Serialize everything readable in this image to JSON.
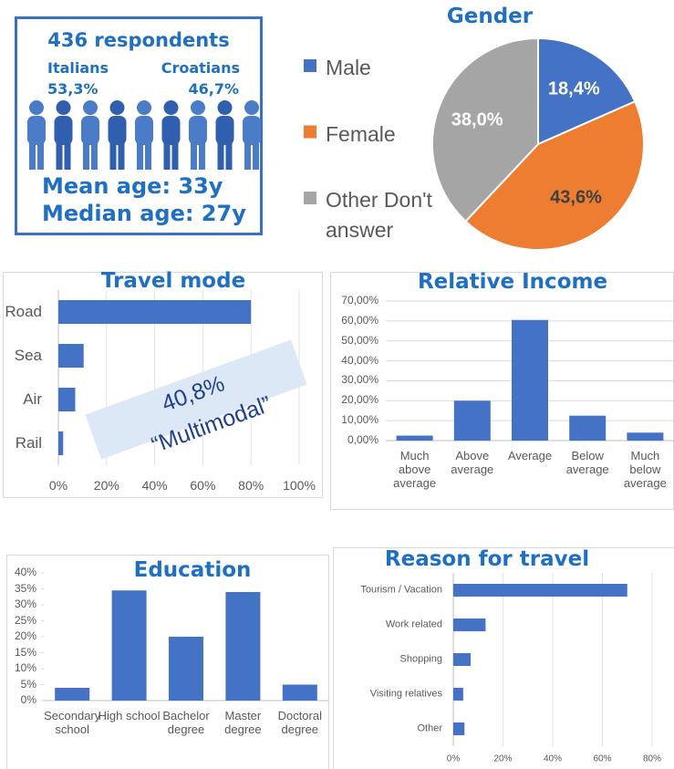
{
  "summary": {
    "respondents": "436 respondents",
    "group_a": "Italians",
    "group_a_share": "53,3%",
    "group_b": "Croatians",
    "group_b_share": "46,7%",
    "mean_age": "Mean age: 33y",
    "median_age": "Median age: 27y"
  },
  "chart_data": [
    {
      "type": "pie",
      "title": "Gender",
      "categories": [
        "Male",
        "Female",
        "Other Don't answer"
      ],
      "values": [
        18.4,
        43.6,
        38.0
      ],
      "value_labels": [
        "18,4%",
        "43,6%",
        "38,0%"
      ],
      "colors": [
        "#4472c4",
        "#ed7d31",
        "#a5a5a5"
      ],
      "legend": "left"
    },
    {
      "type": "hbar",
      "title": "Travel mode",
      "categories": [
        "Road",
        "Sea",
        "Air",
        "Rail"
      ],
      "values": [
        80,
        10.5,
        7,
        2
      ],
      "color": "#4472c4",
      "xlim": [
        0,
        100
      ],
      "xticks": [
        {
          "value": 0,
          "label": "0%"
        },
        {
          "value": 20,
          "label": "20%"
        },
        {
          "value": 40,
          "label": "40%"
        },
        {
          "value": 60,
          "label": "60%"
        },
        {
          "value": 80,
          "label": "80%"
        },
        {
          "value": 100,
          "label": "100%"
        }
      ],
      "grid": true,
      "annotations": [
        "40,8%",
        "“Multimodal”"
      ]
    },
    {
      "type": "bar",
      "title": "Relative Income",
      "categories": [
        "Much above average",
        "Above average",
        "Average",
        "Below average",
        "Much below average"
      ],
      "values": [
        2.5,
        20,
        60.5,
        12.5,
        4
      ],
      "color": "#4472c4",
      "ylim": [
        0,
        70
      ],
      "yticks": [
        {
          "value": 0,
          "label": "0,00%"
        },
        {
          "value": 10,
          "label": "10,00%"
        },
        {
          "value": 20,
          "label": "20,00%"
        },
        {
          "value": 30,
          "label": "30,00%"
        },
        {
          "value": 40,
          "label": "40,00%"
        },
        {
          "value": 50,
          "label": "50,00%"
        },
        {
          "value": 60,
          "label": "60,00%"
        },
        {
          "value": 70,
          "label": "70,00%"
        }
      ],
      "grid": true
    },
    {
      "type": "bar",
      "title": "Education",
      "categories": [
        "Secondary school",
        "High school",
        "Bachelor degree",
        "Master degree",
        "Doctoral degree"
      ],
      "values": [
        4,
        34.5,
        20,
        34,
        5
      ],
      "color": "#4472c4",
      "ylim": [
        0,
        40
      ],
      "yticks": [
        {
          "value": 0,
          "label": "0%"
        },
        {
          "value": 5,
          "label": "5%"
        },
        {
          "value": 10,
          "label": "10%"
        },
        {
          "value": 15,
          "label": "15%"
        },
        {
          "value": 20,
          "label": "20%"
        },
        {
          "value": 25,
          "label": "25%"
        },
        {
          "value": 30,
          "label": "30%"
        },
        {
          "value": 35,
          "label": "35%"
        },
        {
          "value": 40,
          "label": "40%"
        }
      ],
      "grid": false
    },
    {
      "type": "hbar",
      "title": "Reason for travel",
      "categories": [
        "Tourism / Vacation",
        "Work related",
        "Shopping",
        "Visiting relatives",
        "Other"
      ],
      "values": [
        70,
        13,
        7,
        4,
        4.5
      ],
      "color": "#4472c4",
      "xlim": [
        0,
        80
      ],
      "xticks": [
        {
          "value": 0,
          "label": "0%"
        },
        {
          "value": 20,
          "label": "20%"
        },
        {
          "value": 40,
          "label": "40%"
        },
        {
          "value": 60,
          "label": "60%"
        },
        {
          "value": 80,
          "label": "80%"
        }
      ],
      "grid": true
    }
  ]
}
